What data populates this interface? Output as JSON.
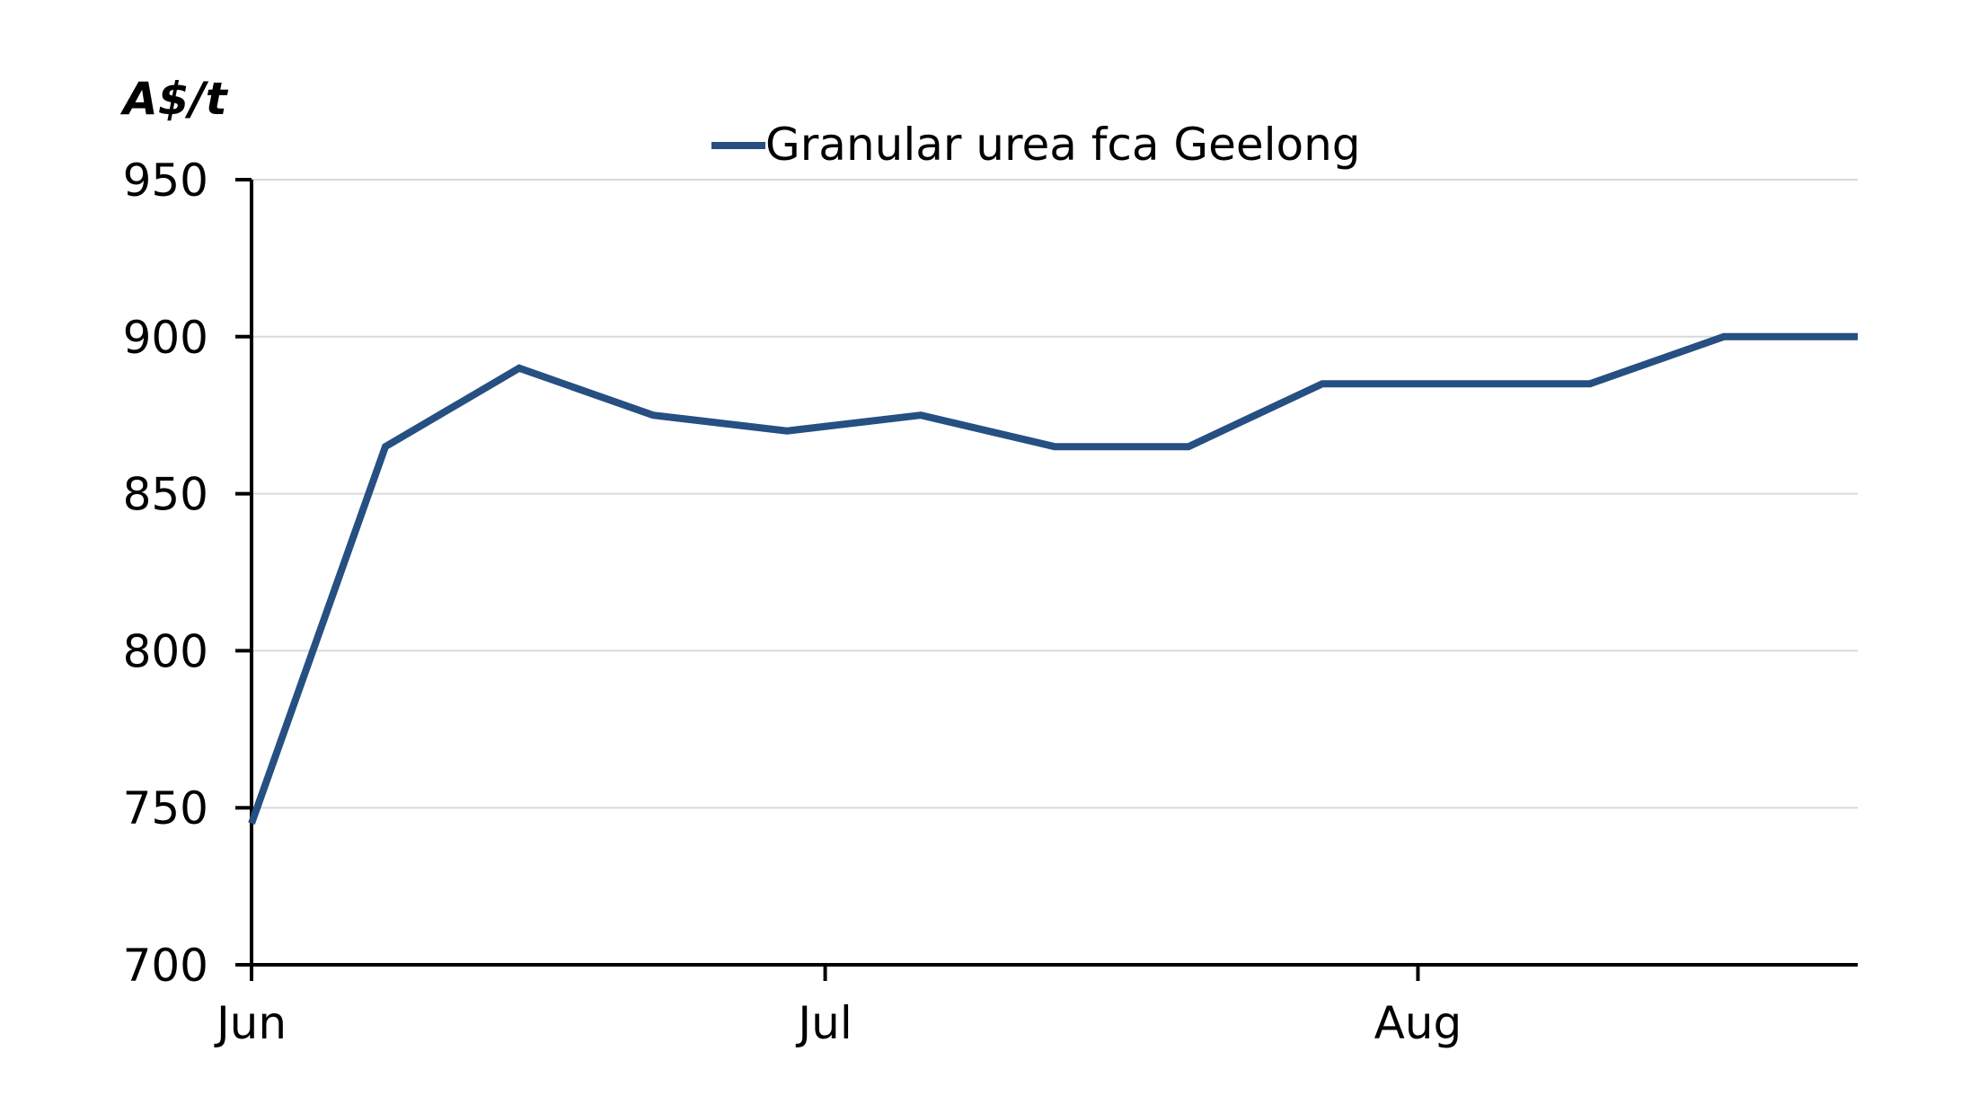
{
  "chart_data": {
    "type": "line",
    "title": "",
    "ylabel": "A$/t",
    "xlabel": "",
    "ylim": [
      700,
      950
    ],
    "yticks": [
      700,
      750,
      800,
      850,
      900,
      950
    ],
    "xticks": [
      "Jun",
      "Jul",
      "Aug"
    ],
    "grid": true,
    "legend_position": "top-center",
    "colors": {
      "series": "#264F82",
      "grid": "#D9D9D9",
      "axis": "#000000"
    },
    "series": [
      {
        "name": "Granular urea fca Geelong",
        "x": [
          "2023-06-01",
          "2023-06-08",
          "2023-06-15",
          "2023-06-22",
          "2023-06-29",
          "2023-07-06",
          "2023-07-13",
          "2023-07-20",
          "2023-07-27",
          "2023-08-03",
          "2023-08-10",
          "2023-08-17",
          "2023-08-24"
        ],
        "values": [
          745,
          865,
          890,
          875,
          870,
          875,
          865,
          865,
          885,
          885,
          885,
          900,
          900
        ]
      }
    ]
  }
}
